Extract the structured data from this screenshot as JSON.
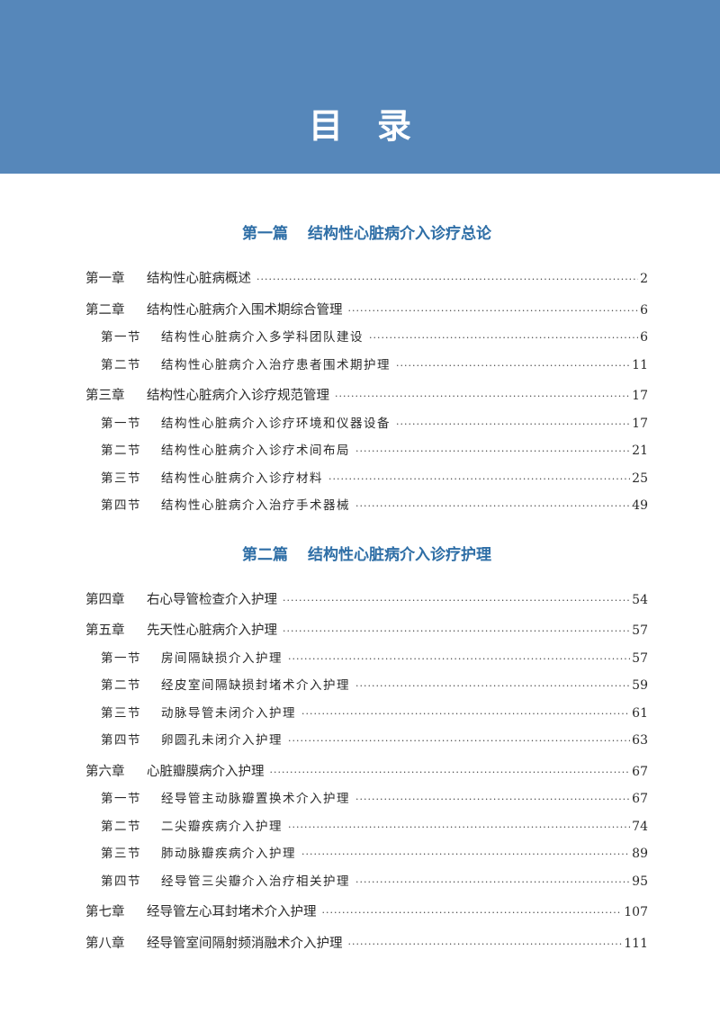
{
  "header": {
    "title": "目录",
    "color": "#5687ba"
  },
  "parts": [
    {
      "label": "第一篇",
      "title": "结构性心脏病介入诊疗总论",
      "entries": [
        {
          "type": "chapter",
          "num": "第一章",
          "title": "结构性心脏病概述",
          "page": "2"
        },
        {
          "type": "chapter",
          "num": "第二章",
          "title": "结构性心脏病介入围术期综合管理",
          "page": "6"
        },
        {
          "type": "section",
          "num": "第一节",
          "title": "结构性心脏病介入多学科团队建设",
          "page": "6"
        },
        {
          "type": "section",
          "num": "第二节",
          "title": "结构性心脏病介入治疗患者围术期护理",
          "page": "11"
        },
        {
          "type": "chapter",
          "num": "第三章",
          "title": "结构性心脏病介入诊疗规范管理",
          "page": "17"
        },
        {
          "type": "section",
          "num": "第一节",
          "title": "结构性心脏病介入诊疗环境和仪器设备",
          "page": "17"
        },
        {
          "type": "section",
          "num": "第二节",
          "title": "结构性心脏病介入诊疗术间布局",
          "page": "21"
        },
        {
          "type": "section",
          "num": "第三节",
          "title": "结构性心脏病介入诊疗材料",
          "page": "25"
        },
        {
          "type": "section",
          "num": "第四节",
          "title": "结构性心脏病介入治疗手术器械",
          "page": "49"
        }
      ]
    },
    {
      "label": "第二篇",
      "title": "结构性心脏病介入诊疗护理",
      "entries": [
        {
          "type": "chapter",
          "num": "第四章",
          "title": "右心导管检查介入护理",
          "page": "54"
        },
        {
          "type": "chapter",
          "num": "第五章",
          "title": "先天性心脏病介入护理",
          "page": "57"
        },
        {
          "type": "section",
          "num": "第一节",
          "title": "房间隔缺损介入护理",
          "page": "57"
        },
        {
          "type": "section",
          "num": "第二节",
          "title": "经皮室间隔缺损封堵术介入护理",
          "page": "59"
        },
        {
          "type": "section",
          "num": "第三节",
          "title": "动脉导管未闭介入护理",
          "page": "61"
        },
        {
          "type": "section",
          "num": "第四节",
          "title": "卵圆孔未闭介入护理",
          "page": "63"
        },
        {
          "type": "chapter",
          "num": "第六章",
          "title": "心脏瓣膜病介入护理",
          "page": "67"
        },
        {
          "type": "section",
          "num": "第一节",
          "title": "经导管主动脉瓣置换术介入护理",
          "page": "67"
        },
        {
          "type": "section",
          "num": "第二节",
          "title": "二尖瓣疾病介入护理",
          "page": "74"
        },
        {
          "type": "section",
          "num": "第三节",
          "title": "肺动脉瓣疾病介入护理",
          "page": "89"
        },
        {
          "type": "section",
          "num": "第四节",
          "title": "经导管三尖瓣介入治疗相关护理",
          "page": "95"
        },
        {
          "type": "chapter",
          "num": "第七章",
          "title": "经导管左心耳封堵术介入护理",
          "page": "107"
        },
        {
          "type": "chapter",
          "num": "第八章",
          "title": "经导管室间隔射频消融术介入护理",
          "page": "111"
        }
      ]
    }
  ],
  "colors": {
    "part_title": "#2e6ea6",
    "text": "#2a2a2a"
  }
}
